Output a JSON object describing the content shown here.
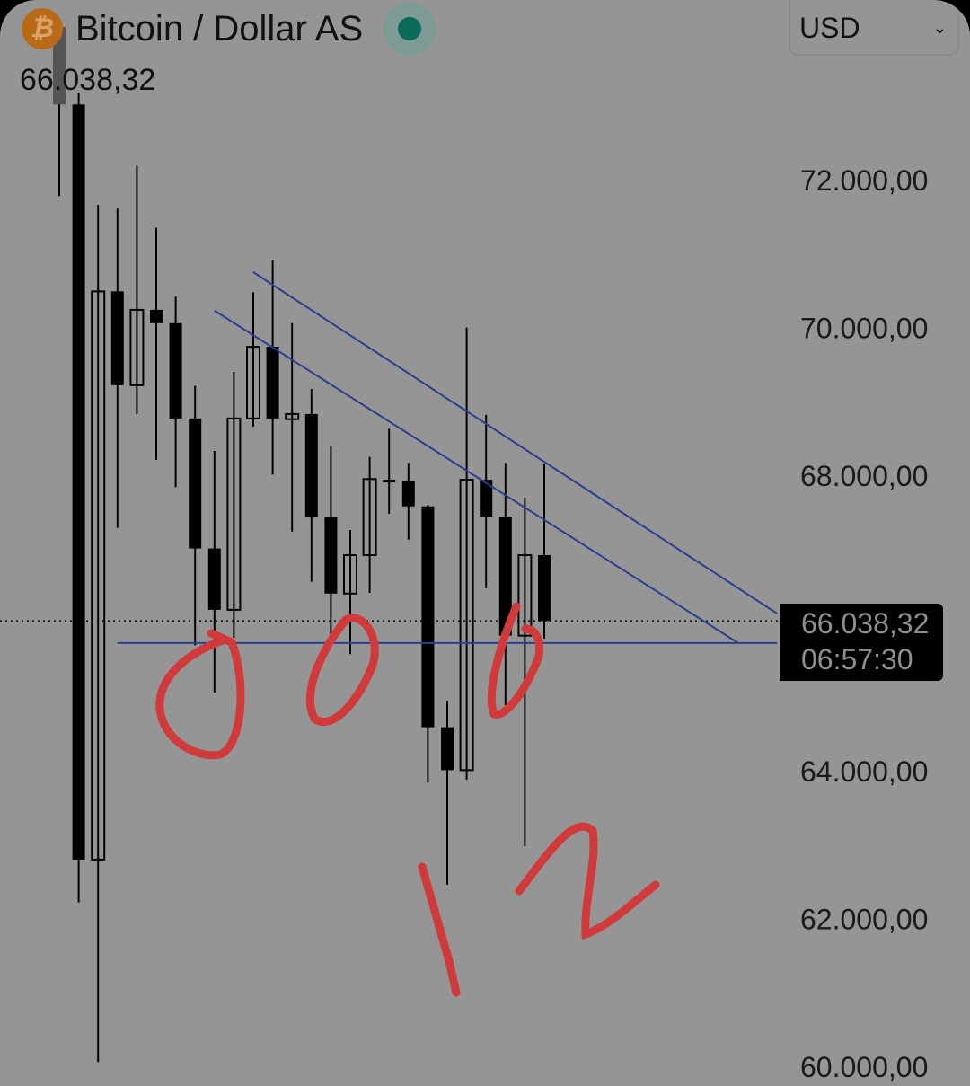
{
  "header": {
    "title": "Bitcoin / Dollar AS",
    "last_price": "66.038,32",
    "coin_icon": "bitcoin-icon",
    "status_color": "#0b6b5a",
    "currency": "USD"
  },
  "price_label": {
    "price": "66.038,32",
    "countdown": "06:57:30"
  },
  "chart_data": {
    "type": "candlestick",
    "y_ticks": [
      "72.000,00",
      "70.000,00",
      "68.000,00",
      "64.000,00",
      "62.000,00",
      "60.000,00"
    ],
    "y_tick_values": [
      72000,
      70000,
      68000,
      64000,
      62000,
      60000
    ],
    "ylim": [
      59900,
      74000
    ],
    "grid": false,
    "colors": {
      "bearish": "#000000",
      "bullish_outline": "#000000",
      "trendline": "#2b3f8f",
      "annotation": "#d13a3a",
      "background": "#959595"
    },
    "candles": [
      {
        "o": 74080,
        "h": 74100,
        "l": 71790,
        "c": 73030
      },
      {
        "o": 73030,
        "h": 73190,
        "l": 62230,
        "c": 62810
      },
      {
        "o": 62810,
        "h": 71670,
        "l": 60070,
        "c": 70500
      },
      {
        "o": 70500,
        "h": 71620,
        "l": 67300,
        "c": 69230
      },
      {
        "o": 69230,
        "h": 72200,
        "l": 68840,
        "c": 70250
      },
      {
        "o": 70250,
        "h": 71360,
        "l": 68220,
        "c": 70070
      },
      {
        "o": 70070,
        "h": 70430,
        "l": 67850,
        "c": 68780
      },
      {
        "o": 68780,
        "h": 69220,
        "l": 65710,
        "c": 67020
      },
      {
        "o": 67020,
        "h": 68340,
        "l": 65070,
        "c": 66190
      },
      {
        "o": 66190,
        "h": 69410,
        "l": 65810,
        "c": 68780
      },
      {
        "o": 68780,
        "h": 70490,
        "l": 68670,
        "c": 69750
      },
      {
        "o": 69750,
        "h": 70920,
        "l": 68020,
        "c": 68780
      },
      {
        "o": 68770,
        "h": 70070,
        "l": 67250,
        "c": 68840
      },
      {
        "o": 68840,
        "h": 69180,
        "l": 66570,
        "c": 67440
      },
      {
        "o": 67440,
        "h": 68410,
        "l": 65810,
        "c": 66410
      },
      {
        "o": 66410,
        "h": 67270,
        "l": 65590,
        "c": 66930
      },
      {
        "o": 66930,
        "h": 68260,
        "l": 66420,
        "c": 67960
      },
      {
        "o": 67950,
        "h": 68640,
        "l": 67490,
        "c": 67930
      },
      {
        "o": 67930,
        "h": 68180,
        "l": 67140,
        "c": 67590
      },
      {
        "o": 67590,
        "h": 67610,
        "l": 63850,
        "c": 64600
      },
      {
        "o": 64600,
        "h": 64960,
        "l": 62470,
        "c": 64020
      },
      {
        "o": 64020,
        "h": 70010,
        "l": 63890,
        "c": 67950
      },
      {
        "o": 67950,
        "h": 68830,
        "l": 66480,
        "c": 67450
      },
      {
        "o": 67450,
        "h": 68180,
        "l": 64900,
        "c": 65840
      },
      {
        "o": 65840,
        "h": 67710,
        "l": 62990,
        "c": 66930
      },
      {
        "o": 66930,
        "h": 68170,
        "l": 65800,
        "c": 66038
      }
    ],
    "current_price": 66038.32,
    "trendlines": [
      {
        "from": [
          10,
          70760
        ],
        "to": [
          37,
          66140
        ]
      },
      {
        "from": [
          8,
          70240
        ],
        "to": [
          35,
          65740
        ]
      },
      {
        "from": [
          3,
          65740
        ],
        "to": [
          37,
          65740
        ]
      }
    ]
  }
}
